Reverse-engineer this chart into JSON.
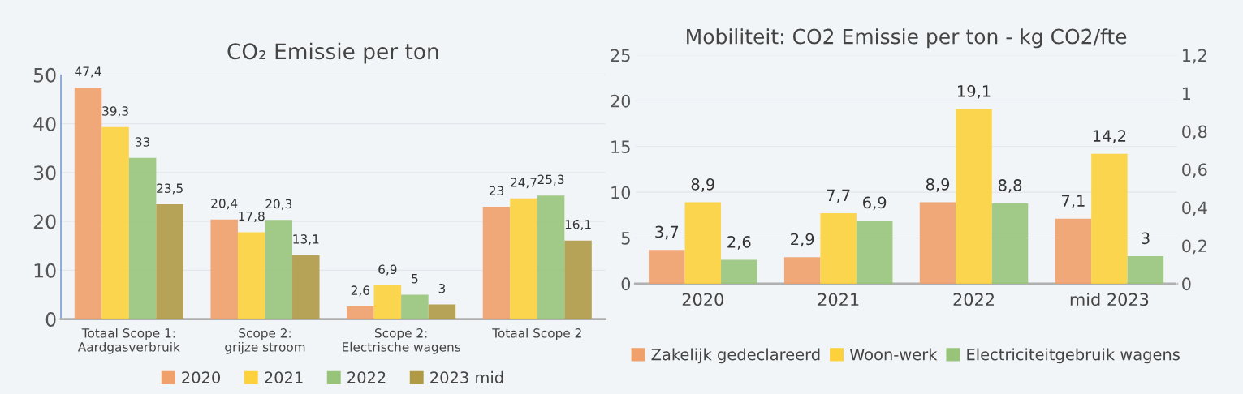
{
  "chart_data": [
    {
      "type": "bar",
      "title": "CO₂ Emissie per ton",
      "categories": [
        "Totaal Scope 1:\nAardgasverbruik",
        "Scope 2:\ngrijze stroom",
        "Scope 2:\nElectrische wagens",
        "Totaal Scope 2"
      ],
      "ylim": [
        0,
        50
      ],
      "yticks": [
        0,
        10,
        20,
        30,
        40,
        50
      ],
      "grid": "y",
      "legend": "bottom",
      "series": [
        {
          "name": "2020",
          "color": "#f0a06a",
          "values": [
            47.4,
            20.4,
            2.6,
            23
          ],
          "value_labels": [
            "47,4",
            "20,4",
            "2,6",
            "23"
          ]
        },
        {
          "name": "2021",
          "color": "#fdd13c",
          "values": [
            39.3,
            17.8,
            6.9,
            24.7
          ],
          "value_labels": [
            "39,3",
            "17,8",
            "6,9",
            "24,7"
          ]
        },
        {
          "name": "2022",
          "color": "#98c47a",
          "values": [
            33,
            20.3,
            5,
            25.3
          ],
          "value_labels": [
            "33",
            "20,3",
            "5",
            "25,3"
          ]
        },
        {
          "name": "2023 mid",
          "color": "#b09a45",
          "values": [
            23.5,
            13.1,
            3,
            16.1
          ],
          "value_labels": [
            "23,5",
            "13,1",
            "3",
            "16,1"
          ]
        }
      ]
    },
    {
      "type": "bar",
      "title": "Mobiliteit: CO2 Emissie per ton - kg CO2/fte",
      "categories": [
        "2020",
        "2021",
        "2022",
        "mid 2023"
      ],
      "ylim": [
        0,
        25
      ],
      "yticks": [
        0,
        5,
        10,
        15,
        20,
        25
      ],
      "y2lim": [
        0,
        1.2
      ],
      "y2ticks": [
        0,
        {
          "value": 0.2,
          "label": "0,2"
        },
        {
          "value": 0.4,
          "label": "0,4"
        },
        {
          "value": 0.6,
          "label": "0,6"
        },
        {
          "value": 0.8,
          "label": "0,8"
        },
        1,
        {
          "value": 1.2,
          "label": "1,2"
        }
      ],
      "grid": "y",
      "legend": "bottom",
      "series": [
        {
          "name": "Zakelijk gedeclareerd",
          "color": "#f0a06a",
          "values": [
            3.7,
            2.9,
            8.9,
            7.1
          ],
          "value_labels": [
            "3,7",
            "2,9",
            "8,9",
            "7,1"
          ]
        },
        {
          "name": "Woon-werk",
          "color": "#fdd13c",
          "values": [
            8.9,
            7.7,
            19.1,
            14.2
          ],
          "value_labels": [
            "8,9",
            "7,7",
            "19,1",
            "14,2"
          ]
        },
        {
          "name": "Electriciteitgebruik wagens",
          "color": "#98c47a",
          "values": [
            2.6,
            6.9,
            8.8,
            3
          ],
          "value_labels": [
            "2,6",
            "6,9",
            "8,8",
            "3"
          ]
        }
      ]
    }
  ]
}
